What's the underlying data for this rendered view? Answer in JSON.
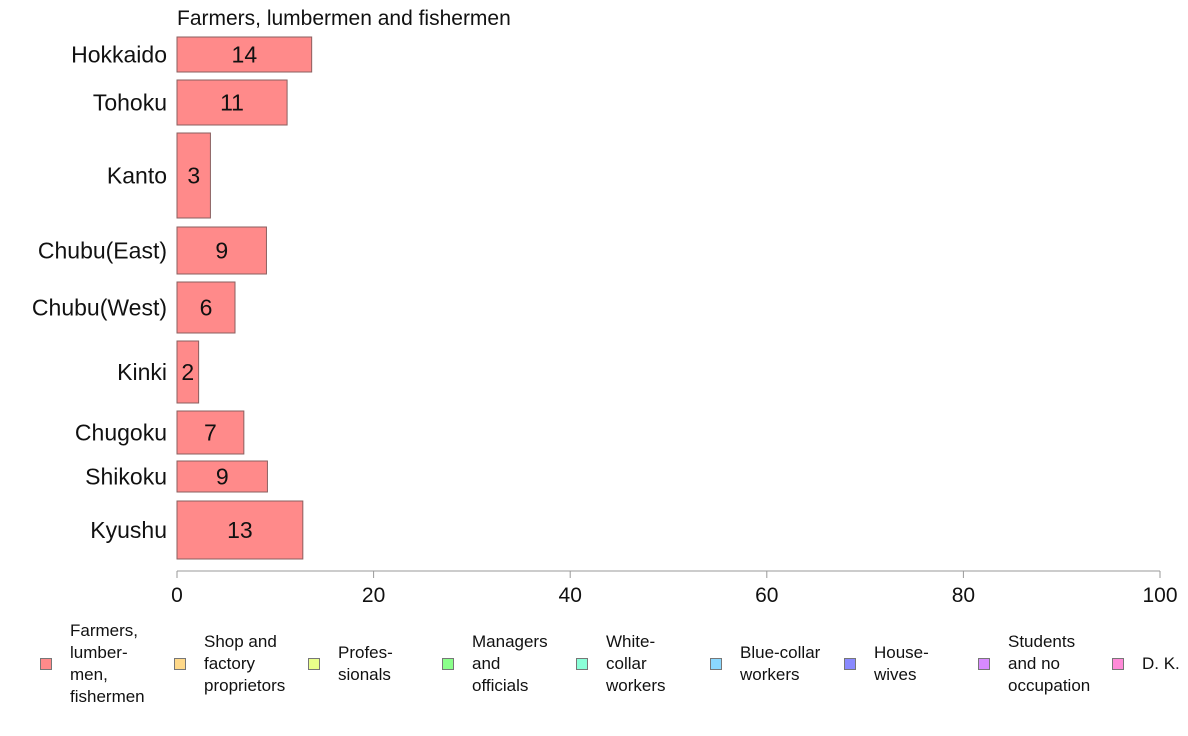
{
  "chart_data": {
    "type": "bar",
    "orientation": "horizontal",
    "title": "Farmers, lumbermen and fishermen",
    "categories": [
      "Hokkaido",
      "Tohoku",
      "Kanto",
      "Chubu(East)",
      "Chubu(West)",
      "Kinki",
      "Chugoku",
      "Shikoku",
      "Kyushu"
    ],
    "series": [
      {
        "name": "Farmers,\nlumber-\nmen,\nfishermen",
        "color": "#ff8a8a",
        "values": [
          13.7,
          11.2,
          3.4,
          9.1,
          5.9,
          2.2,
          6.8,
          9.2,
          12.8
        ],
        "labels": [
          "14",
          "11",
          "3",
          "9",
          "6",
          "2",
          "7",
          "9",
          "13"
        ]
      }
    ],
    "xlim": [
      0,
      100
    ],
    "xticks": [
      "0",
      "20",
      "40",
      "60",
      "80",
      "100"
    ],
    "xlabel": "",
    "ylabel": "",
    "grid": false,
    "legend_position": "bottom"
  },
  "legend": [
    {
      "label": "Farmers,\nlumber-\nmen,\nfishermen",
      "color": "#ff8a8a"
    },
    {
      "label": "Shop and\nfactory\nproprietors",
      "color": "#ffd98a"
    },
    {
      "label": "Profes-\nsionals",
      "color": "#e9ff8a"
    },
    {
      "label": "Managers\nand\nofficials",
      "color": "#8aff8a"
    },
    {
      "label": "White-\ncollar\nworkers",
      "color": "#8affd8"
    },
    {
      "label": "Blue-collar\nworkers",
      "color": "#8ad8ff"
    },
    {
      "label": "House-\nwives",
      "color": "#8a8aff"
    },
    {
      "label": "Students\nand no\noccupation",
      "color": "#d88aff"
    },
    {
      "label": "D. K.",
      "color": "#ff8ad8"
    }
  ]
}
